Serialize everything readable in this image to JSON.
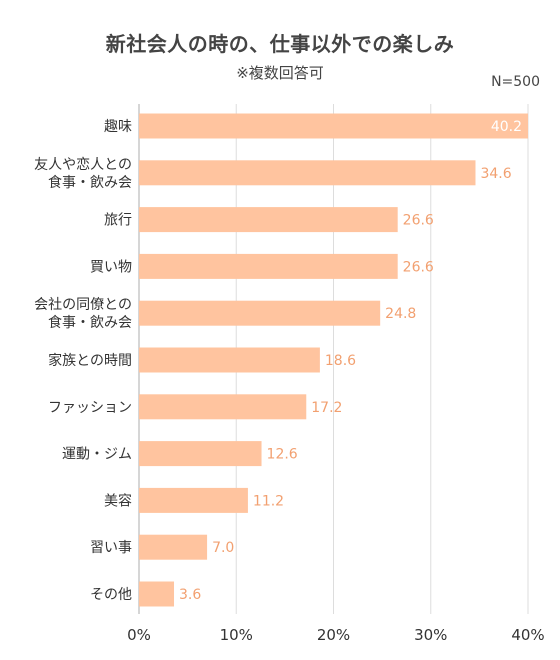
{
  "chart_data": {
    "type": "bar",
    "orientation": "horizontal",
    "title": "新社会人の時の、仕事以外での楽しみ",
    "subtitle": "※複数回答可",
    "sample_size": "N=500",
    "categories": [
      [
        "趣味"
      ],
      [
        "友人や恋人との",
        "食事・飲み会"
      ],
      [
        "旅行"
      ],
      [
        "買い物"
      ],
      [
        "会社の同僚との",
        "食事・飲み会"
      ],
      [
        "家族との時間"
      ],
      [
        "ファッション"
      ],
      [
        "運動・ジム"
      ],
      [
        "美容"
      ],
      [
        "習い事"
      ],
      [
        "その他"
      ]
    ],
    "values": [
      40.2,
      34.6,
      26.6,
      26.6,
      24.8,
      18.6,
      17.2,
      12.6,
      11.2,
      7.0,
      3.6
    ],
    "value_labels": [
      "40.2",
      "34.6",
      "26.6",
      "26.6",
      "24.8",
      "18.6",
      "17.2",
      "12.6",
      "11.2",
      "7.0",
      "3.6"
    ],
    "xlim": [
      0,
      40
    ],
    "xticks": [
      0,
      10,
      20,
      30,
      40
    ],
    "xtick_labels": [
      "0%",
      "10%",
      "20%",
      "30%",
      "40%"
    ],
    "grid": true,
    "colors": {
      "bar": "#ffc49f",
      "value_label": "#f2a070",
      "value_label_inside": "#ffffff",
      "grid": "#dddddd"
    }
  }
}
